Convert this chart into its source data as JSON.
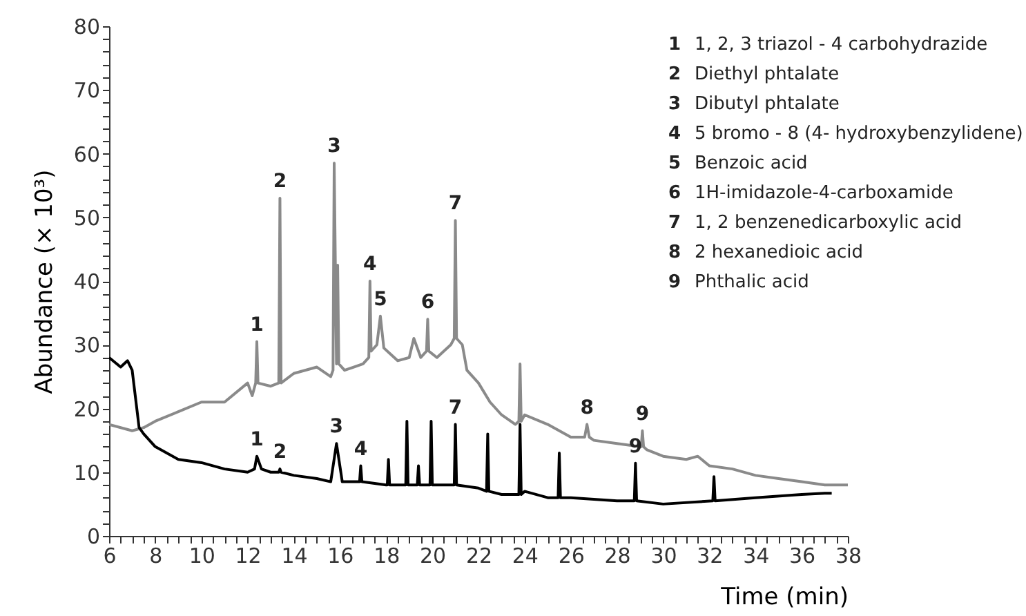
{
  "chart_data": {
    "type": "line",
    "xlabel": "Time (min)",
    "ylabel": "Abundance (× 10³)",
    "xlim": [
      6,
      38
    ],
    "ylim": [
      0,
      80
    ],
    "xticks": [
      6,
      {
        "value": 6.5,
        "label": null
      },
      {
        "value": 7,
        "label": null
      },
      {
        "value": 7.5,
        "label": null
      },
      8,
      {
        "value": 8.5,
        "label": null
      },
      {
        "value": 9,
        "label": null
      },
      {
        "value": 9.5,
        "label": null
      },
      10,
      {
        "value": 10.5,
        "label": null
      },
      {
        "value": 11,
        "label": null
      },
      {
        "value": 11.5,
        "label": null
      },
      12,
      {
        "value": 12.5,
        "label": null
      },
      {
        "value": 13,
        "label": null
      },
      {
        "value": 13.5,
        "label": null
      },
      14,
      {
        "value": 14.5,
        "label": null
      },
      {
        "value": 15,
        "label": null
      },
      {
        "value": 15.5,
        "label": null
      },
      16,
      {
        "value": 16.5,
        "label": null
      },
      {
        "value": 17,
        "label": null
      },
      {
        "value": 17.5,
        "label": null
      },
      18,
      {
        "value": 18.5,
        "label": null
      },
      {
        "value": 19,
        "label": null
      },
      {
        "value": 19.5,
        "label": null
      },
      20,
      {
        "value": 20.5,
        "label": null
      },
      {
        "value": 21,
        "label": null
      },
      {
        "value": 21.5,
        "label": null
      },
      22,
      {
        "value": 22.5,
        "label": null
      },
      {
        "value": 23,
        "label": null
      },
      {
        "value": 23.5,
        "label": null
      },
      24,
      {
        "value": 24.5,
        "label": null
      },
      {
        "value": 25,
        "label": null
      },
      {
        "value": 25.5,
        "label": null
      },
      26,
      {
        "value": 26.5,
        "label": null
      },
      {
        "value": 27,
        "label": null
      },
      {
        "value": 27.5,
        "label": null
      },
      28,
      {
        "value": 28.5,
        "label": null
      },
      {
        "value": 29,
        "label": null
      },
      {
        "value": 29.5,
        "label": null
      },
      30,
      {
        "value": 30.5,
        "label": null
      },
      {
        "value": 31,
        "label": null
      },
      {
        "value": 31.5,
        "label": null
      },
      32,
      {
        "value": 32.5,
        "label": null
      },
      {
        "value": 33,
        "label": null
      },
      {
        "value": 33.5,
        "label": null
      },
      34,
      {
        "value": 34.5,
        "label": null
      },
      {
        "value": 35,
        "label": null
      },
      {
        "value": 35.5,
        "label": null
      },
      36,
      {
        "value": 36.5,
        "label": null
      },
      {
        "value": 37,
        "label": null
      },
      {
        "value": 37.5,
        "label": null
      },
      38
    ],
    "yticks": [
      0,
      {
        "value": 2,
        "label": null
      },
      {
        "value": 4,
        "label": null
      },
      {
        "value": 6,
        "label": null
      },
      {
        "value": 8,
        "label": null
      },
      10,
      {
        "value": 12,
        "label": null
      },
      {
        "value": 14,
        "label": null
      },
      {
        "value": 16,
        "label": null
      },
      {
        "value": 18,
        "label": null
      },
      20,
      {
        "value": 22,
        "label": null
      },
      {
        "value": 24,
        "label": null
      },
      {
        "value": 26,
        "label": null
      },
      {
        "value": 28,
        "label": null
      },
      30,
      {
        "value": 32,
        "label": null
      },
      {
        "value": 34,
        "label": null
      },
      {
        "value": 36,
        "label": null
      },
      {
        "value": 38,
        "label": null
      },
      40,
      {
        "value": 42,
        "label": null
      },
      {
        "value": 44,
        "label": null
      },
      {
        "value": 46,
        "label": null
      },
      {
        "value": 48,
        "label": null
      },
      50,
      {
        "value": 52,
        "label": null
      },
      {
        "value": 54,
        "label": null
      },
      {
        "value": 56,
        "label": null
      },
      {
        "value": 58,
        "label": null
      },
      60,
      {
        "value": 62,
        "label": null
      },
      {
        "value": 64,
        "label": null
      },
      {
        "value": 66,
        "label": null
      },
      {
        "value": 68,
        "label": null
      },
      70,
      {
        "value": 72,
        "label": null
      },
      {
        "value": 74,
        "label": null
      },
      {
        "value": 76,
        "label": null
      },
      {
        "value": 78,
        "label": null
      },
      80
    ],
    "grid": false,
    "marker": "none",
    "line_style": "solid",
    "series": [
      {
        "color": "#8a8a8a",
        "x": [
          6,
          7,
          7.5,
          8,
          9,
          10,
          11,
          12,
          12.2,
          12.35,
          12.4,
          12.45,
          13,
          13.35,
          13.4,
          13.45,
          14,
          15,
          15.6,
          15.7,
          15.75,
          15.85,
          15.9,
          15.95,
          16.2,
          17,
          17.25,
          17.3,
          17.35,
          17.6,
          17.75,
          17.9,
          18.5,
          19,
          19.2,
          19.5,
          19.75,
          19.8,
          19.85,
          20.2,
          20.8,
          20.95,
          21,
          21.05,
          21.3,
          21.5,
          22,
          22.5,
          23,
          23.6,
          23.75,
          23.8,
          23.85,
          24,
          25,
          25.5,
          26,
          26.6,
          26.7,
          26.8,
          27,
          28,
          29,
          29.05,
          29.1,
          29.15,
          29.3,
          30,
          31,
          31.5,
          32,
          33,
          34,
          35,
          36,
          37,
          38
        ],
        "values": [
          17.5,
          16.5,
          17,
          18,
          19.5,
          21,
          21,
          24,
          22,
          24,
          30.5,
          24,
          23.5,
          24,
          53,
          24,
          25.5,
          26.5,
          25,
          26,
          58.5,
          27,
          42.5,
          27,
          26,
          27,
          28,
          40,
          29,
          30,
          34.5,
          29.5,
          27.5,
          28,
          31,
          28,
          29,
          34,
          29,
          28,
          30,
          31,
          49.5,
          31,
          30,
          26,
          24,
          21,
          19,
          17.5,
          18,
          27,
          18,
          19,
          17.5,
          16.5,
          15.5,
          15.5,
          17.5,
          15.5,
          15,
          14.5,
          14,
          14,
          16.5,
          14,
          13.5,
          12.5,
          12,
          12.5,
          11,
          10.5,
          9.5,
          9,
          8.5,
          8,
          8
        ]
      },
      {
        "color": "#000000",
        "x": [
          6,
          6.5,
          6.8,
          7,
          7.2,
          7.3,
          7.5,
          8,
          9,
          10,
          11,
          12,
          12.3,
          12.4,
          12.6,
          13,
          13.35,
          13.4,
          13.45,
          14,
          15,
          15.6,
          15.85,
          16.1,
          16.85,
          16.9,
          16.95,
          18,
          18.05,
          18.1,
          18.15,
          18.85,
          18.9,
          18.95,
          19.35,
          19.4,
          19.45,
          19.9,
          19.95,
          20,
          20.95,
          21,
          21.05,
          22,
          22.35,
          22.4,
          22.45,
          23,
          23.75,
          23.8,
          23.85,
          24,
          25,
          25.45,
          25.5,
          25.55,
          26,
          28,
          28.75,
          28.8,
          28.85,
          30,
          32.15,
          32.2,
          32.25,
          34,
          36,
          37,
          37.3
        ],
        "values": [
          28,
          26.5,
          27.5,
          26,
          20,
          17,
          16,
          14,
          12,
          11.5,
          10.5,
          10,
          10.5,
          12.5,
          10.5,
          10,
          10,
          10.5,
          10,
          9.5,
          9,
          8.5,
          14.5,
          8.5,
          8.5,
          11,
          8.5,
          8,
          8,
          12,
          8,
          8,
          18,
          8,
          8,
          11,
          8,
          8,
          18,
          8,
          8,
          17.5,
          8,
          7.5,
          7,
          16,
          7,
          6.5,
          6.5,
          17.5,
          6.5,
          7,
          6,
          6,
          13,
          6,
          6,
          5.5,
          5.5,
          11.4,
          5.5,
          5,
          5.5,
          9.3,
          5.5,
          6,
          6.5,
          6.7,
          6.7
        ]
      }
    ],
    "annotations": [
      {
        "text": "1",
        "x": 12.4,
        "y": 30.5
      },
      {
        "text": "2",
        "x": 13.4,
        "y": 53
      },
      {
        "text": "3",
        "x": 15.75,
        "y": 58.5
      },
      {
        "text": "4",
        "x": 17.3,
        "y": 40
      },
      {
        "text": "5",
        "x": 17.75,
        "y": 34.5
      },
      {
        "text": "6",
        "x": 19.8,
        "y": 34
      },
      {
        "text": "7",
        "x": 21,
        "y": 49.5
      },
      {
        "text": "8",
        "x": 26.7,
        "y": 17.5
      },
      {
        "text": "9",
        "x": 29.1,
        "y": 16.5
      },
      {
        "text": "1",
        "x": 12.4,
        "y": 12.5
      },
      {
        "text": "2",
        "x": 13.4,
        "y": 10.5
      },
      {
        "text": "3",
        "x": 15.85,
        "y": 14.5
      },
      {
        "text": "4",
        "x": 16.9,
        "y": 11
      },
      {
        "text": "7",
        "x": 21,
        "y": 17.5
      },
      {
        "text": "9",
        "x": 28.8,
        "y": 11.4
      },
      "1 1, 2, 3 triazol - 4 carbohydrazide",
      "2 Diethyl phtalate",
      "3 Dibutyl phtalate",
      "4 5 bromo - 8 (4- hydroxybenzylidene)",
      "5 Benzoic acid",
      "6 1H-imidazole-4-carboxamide",
      "7 1, 2 benzenedicarboxylic acid",
      "8 2 hexanedioic acid",
      "9 Phthalic acid"
    ]
  }
}
